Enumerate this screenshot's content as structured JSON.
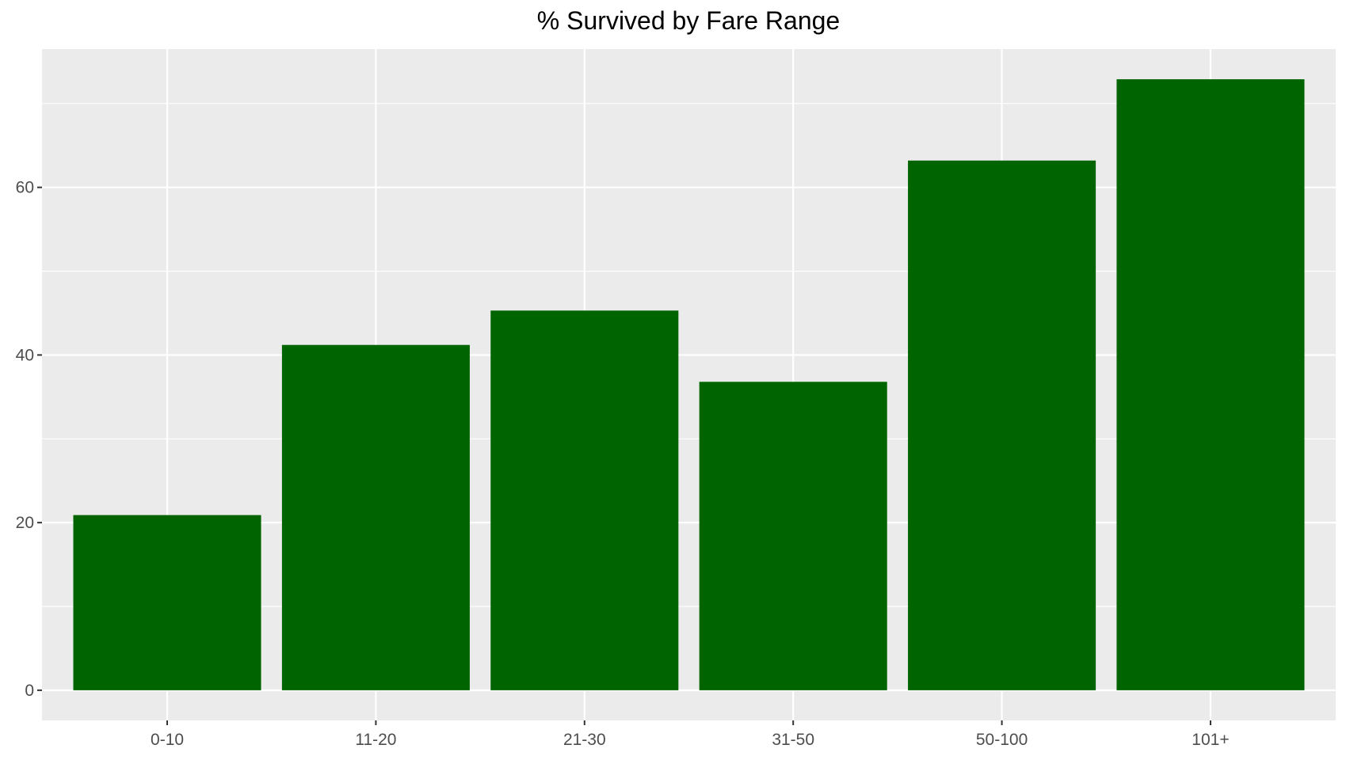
{
  "chart_data": {
    "type": "bar",
    "title": "% Survived by Fare Range",
    "xlabel": "",
    "ylabel": "",
    "categories": [
      "0-10",
      "11-20",
      "21-30",
      "31-50",
      "50-100",
      "101+"
    ],
    "values": [
      20.9,
      41.2,
      45.3,
      36.8,
      63.2,
      72.9
    ],
    "ylim": [
      -3.6,
      76.5
    ],
    "yticks": [
      0,
      20,
      40,
      60
    ],
    "grid": true,
    "colors": {
      "bar": "#006400",
      "panel": "#ebebeb",
      "grid": "#ffffff",
      "tick_text": "#4d4d4d"
    }
  }
}
